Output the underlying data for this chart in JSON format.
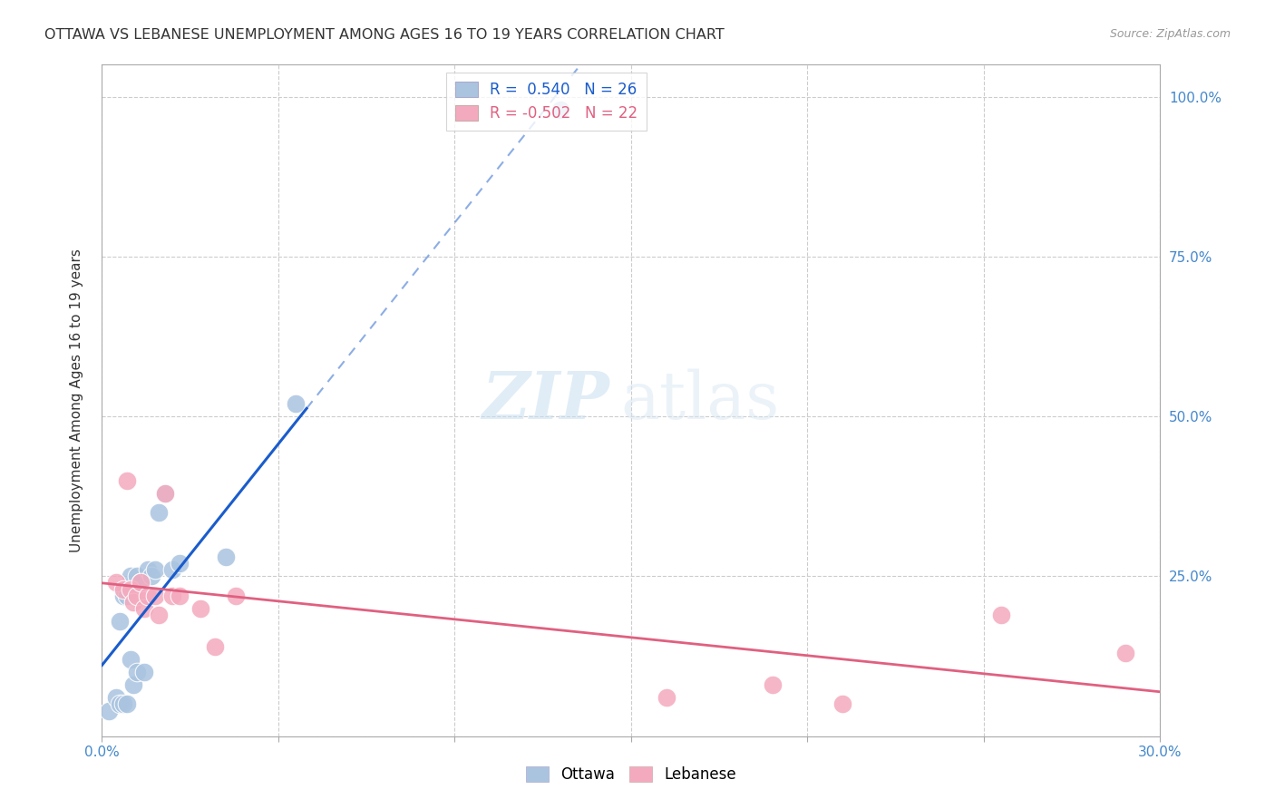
{
  "title": "OTTAWA VS LEBANESE UNEMPLOYMENT AMONG AGES 16 TO 19 YEARS CORRELATION CHART",
  "source": "Source: ZipAtlas.com",
  "ylabel": "Unemployment Among Ages 16 to 19 years",
  "xlim": [
    0.0,
    0.3
  ],
  "ylim": [
    0.0,
    1.05
  ],
  "ottawa_R": "0.540",
  "ottawa_N": "26",
  "lebanese_R": "-0.502",
  "lebanese_N": "22",
  "ottawa_color": "#aac4e0",
  "lebanese_color": "#f4aabe",
  "ottawa_line_color": "#1a5ccc",
  "lebanese_line_color": "#e06080",
  "ottawa_scatter_x": [
    0.002,
    0.004,
    0.005,
    0.005,
    0.006,
    0.006,
    0.007,
    0.007,
    0.008,
    0.008,
    0.009,
    0.009,
    0.01,
    0.01,
    0.011,
    0.012,
    0.013,
    0.014,
    0.015,
    0.016,
    0.018,
    0.02,
    0.022,
    0.035,
    0.055,
    0.13
  ],
  "ottawa_scatter_y": [
    0.04,
    0.06,
    0.05,
    0.18,
    0.05,
    0.22,
    0.05,
    0.22,
    0.12,
    0.25,
    0.08,
    0.23,
    0.1,
    0.25,
    0.24,
    0.1,
    0.26,
    0.25,
    0.26,
    0.35,
    0.38,
    0.26,
    0.27,
    0.28,
    0.52,
    0.98
  ],
  "lebanese_scatter_x": [
    0.004,
    0.006,
    0.007,
    0.008,
    0.009,
    0.01,
    0.011,
    0.012,
    0.013,
    0.015,
    0.016,
    0.018,
    0.02,
    0.022,
    0.028,
    0.032,
    0.038,
    0.16,
    0.19,
    0.21,
    0.255,
    0.29
  ],
  "lebanese_scatter_y": [
    0.24,
    0.23,
    0.4,
    0.23,
    0.21,
    0.22,
    0.24,
    0.2,
    0.22,
    0.22,
    0.19,
    0.38,
    0.22,
    0.22,
    0.2,
    0.14,
    0.22,
    0.06,
    0.08,
    0.05,
    0.19,
    0.13
  ],
  "watermark_zip": "ZIP",
  "watermark_atlas": "atlas",
  "background_color": "#ffffff",
  "grid_color": "#cccccc",
  "axis_text_color": "#4488cc",
  "text_color": "#333333"
}
